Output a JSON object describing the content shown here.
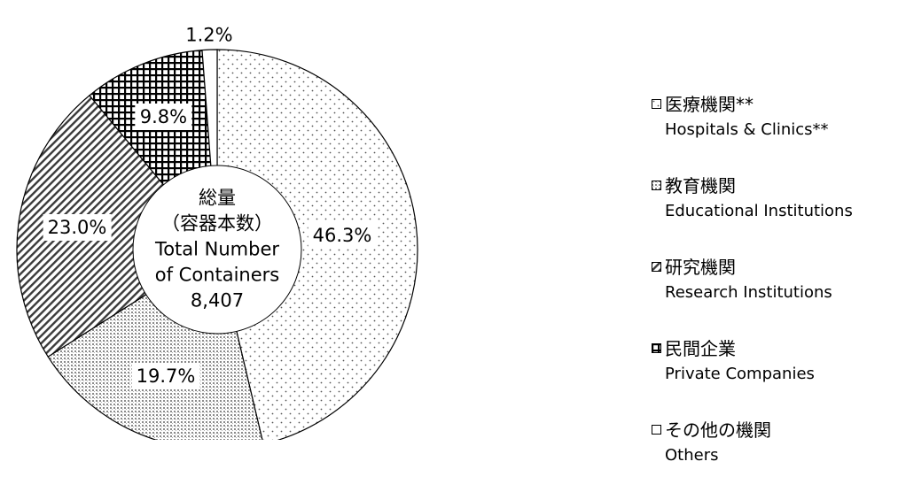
{
  "chart_data": {
    "type": "pie",
    "style": "donut",
    "center_text": [
      "総量",
      "（容器本数）",
      "Total Number",
      "of Containers",
      "8,407"
    ],
    "slices": [
      {
        "label_ja": "医療機関**",
        "label_en": "Hospitals  & Clinics**",
        "value": 46.3,
        "value_label": "46.3%",
        "pattern": "dots"
      },
      {
        "label_ja": "教育機関",
        "label_en": "Educational Institutions",
        "value": 19.7,
        "value_label": "19.7%",
        "pattern": "dense-dots"
      },
      {
        "label_ja": "研究機関",
        "label_en": "Research Institutions",
        "value": 23.0,
        "value_label": "23.0%",
        "pattern": "diagonal-hatch"
      },
      {
        "label_ja": "民間企業",
        "label_en": "Private Companies",
        "value": 9.8,
        "value_label": "9.8%",
        "pattern": "grid"
      },
      {
        "label_ja": "その他の機関",
        "label_en": "Others",
        "value": 1.2,
        "value_label": "1.2%",
        "pattern": "none"
      }
    ],
    "legend_position": "right"
  },
  "colors": {
    "outline": "#000000",
    "background": "#ffffff"
  }
}
